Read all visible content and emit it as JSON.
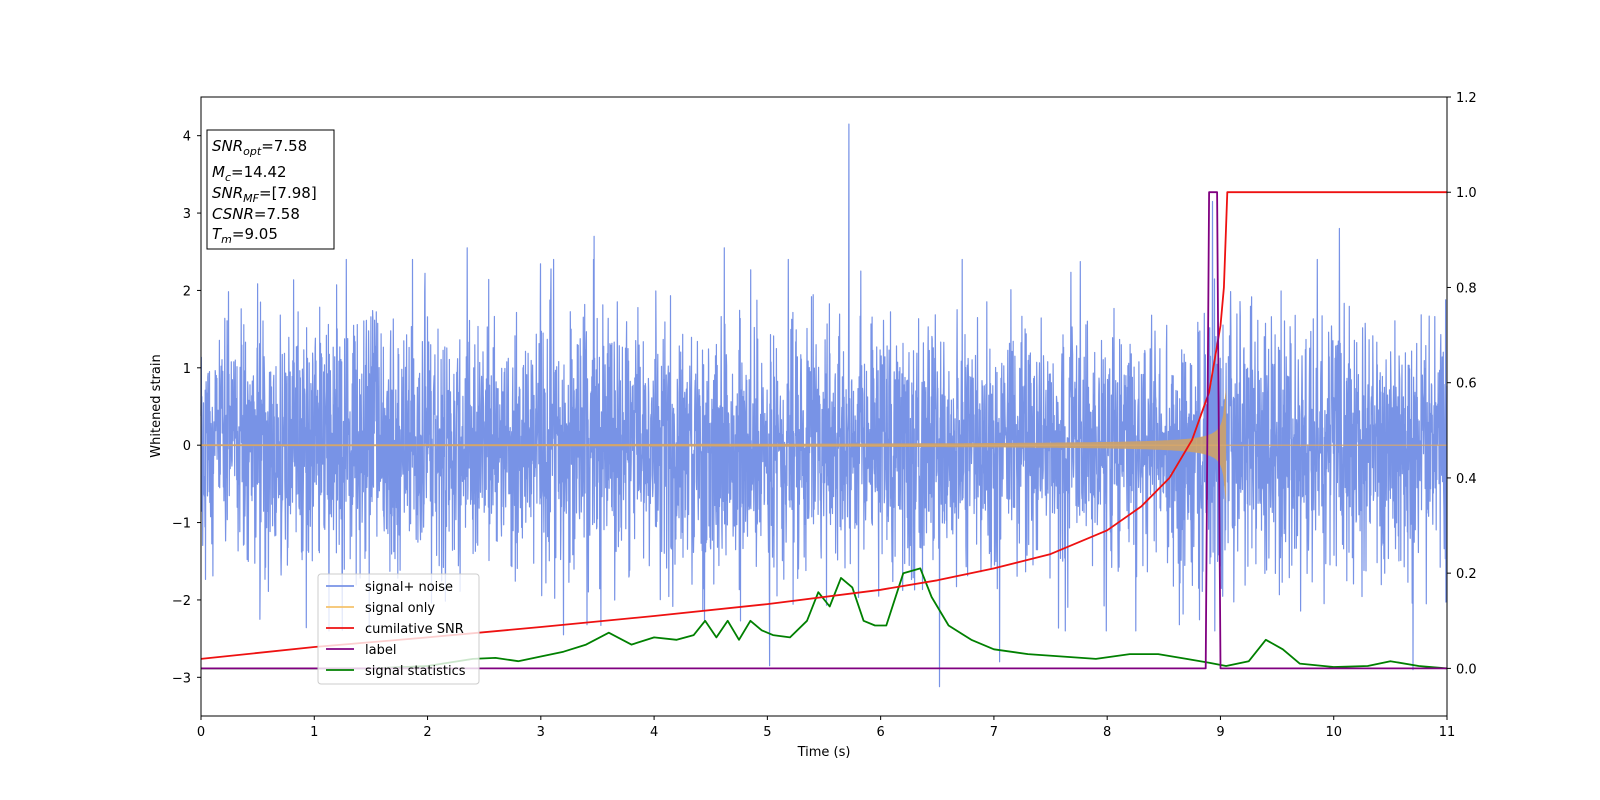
{
  "chart_data": {
    "type": "line",
    "xlabel": "Time (s)",
    "ylabel": "Whitened strain",
    "xlim": [
      0,
      11
    ],
    "ylim": [
      -3.5,
      4.5
    ],
    "y2lim": [
      -0.1,
      1.2
    ],
    "x_ticks": [
      "0",
      "1",
      "2",
      "3",
      "4",
      "5",
      "6",
      "7",
      "8",
      "9",
      "10",
      "11"
    ],
    "y_ticks": [
      "−3",
      "−2",
      "−1",
      "0",
      "1",
      "2",
      "3",
      "4"
    ],
    "y2_ticks": [
      "0.0",
      "0.2",
      "0.4",
      "0.6",
      "0.8",
      "1.0",
      "1.2"
    ],
    "grid": false,
    "legend_position": "lower-left",
    "stats_box": {
      "position": "top-left",
      "lines": [
        {
          "sym": "SNR",
          "sub": "opt",
          "val": "=7.58"
        },
        {
          "sym": "M",
          "sub": "c",
          "val": "=14.42"
        },
        {
          "sym": "SNR",
          "sub": "MF",
          "val": "=[7.98]"
        },
        {
          "sym": "CSNR",
          "sub": "",
          "val": "=7.58"
        },
        {
          "sym": "T",
          "sub": "m",
          "val": "=9.05"
        }
      ]
    },
    "series": [
      {
        "name": "signal+ noise",
        "axis": "left",
        "color": "#7893e6",
        "kind": "noise",
        "sigma": 0.8,
        "spikes": [
          {
            "x": 5.72,
            "y": 4.15
          },
          {
            "x": 6.52,
            "y": -3.12
          },
          {
            "x": 8.93,
            "y": 3.15
          },
          {
            "x": 3.47,
            "y": 2.7
          },
          {
            "x": 2.35,
            "y": 2.55
          },
          {
            "x": 10.05,
            "y": 2.8
          },
          {
            "x": 3.2,
            "y": -2.45
          },
          {
            "x": 5.02,
            "y": -2.85
          },
          {
            "x": 7.05,
            "y": -2.8
          },
          {
            "x": 10.7,
            "y": -2.9
          },
          {
            "x": 0.52,
            "y": -2.25
          },
          {
            "x": 4.62,
            "y": 2.55
          }
        ]
      },
      {
        "name": "signal only",
        "axis": "left",
        "color": "#f5c26b",
        "kind": "chirp",
        "merger_time": 9.05
      },
      {
        "name": "cumilative SNR",
        "axis": "right",
        "color": "#ee1111",
        "kind": "points",
        "points": [
          [
            0,
            0.02
          ],
          [
            1,
            0.045
          ],
          [
            2,
            0.065
          ],
          [
            3,
            0.087
          ],
          [
            4,
            0.11
          ],
          [
            5,
            0.135
          ],
          [
            6,
            0.165
          ],
          [
            6.5,
            0.185
          ],
          [
            7,
            0.21
          ],
          [
            7.5,
            0.24
          ],
          [
            8,
            0.29
          ],
          [
            8.3,
            0.34
          ],
          [
            8.55,
            0.4
          ],
          [
            8.75,
            0.48
          ],
          [
            8.9,
            0.58
          ],
          [
            9.0,
            0.72
          ],
          [
            9.03,
            0.8
          ],
          [
            9.06,
            1.0
          ],
          [
            11,
            1.0
          ]
        ]
      },
      {
        "name": "label",
        "axis": "right",
        "color": "#800080",
        "kind": "points",
        "points": [
          [
            0,
            0.0
          ],
          [
            8.87,
            0.0
          ],
          [
            8.9,
            1.0
          ],
          [
            8.97,
            1.0
          ],
          [
            9.0,
            0.0
          ],
          [
            11,
            0.0
          ]
        ]
      },
      {
        "name": "signal statistics",
        "axis": "right",
        "color": "#008000",
        "kind": "points",
        "points": [
          [
            0,
            0.0
          ],
          [
            0.5,
            0.0
          ],
          [
            1.5,
            0.0
          ],
          [
            2,
            0.005
          ],
          [
            2.4,
            0.02
          ],
          [
            2.6,
            0.022
          ],
          [
            2.8,
            0.015
          ],
          [
            3.0,
            0.025
          ],
          [
            3.2,
            0.035
          ],
          [
            3.4,
            0.05
          ],
          [
            3.6,
            0.075
          ],
          [
            3.8,
            0.05
          ],
          [
            4.0,
            0.065
          ],
          [
            4.2,
            0.06
          ],
          [
            4.35,
            0.07
          ],
          [
            4.45,
            0.1
          ],
          [
            4.55,
            0.065
          ],
          [
            4.65,
            0.1
          ],
          [
            4.75,
            0.06
          ],
          [
            4.85,
            0.1
          ],
          [
            4.95,
            0.08
          ],
          [
            5.05,
            0.07
          ],
          [
            5.2,
            0.065
          ],
          [
            5.35,
            0.1
          ],
          [
            5.45,
            0.16
          ],
          [
            5.55,
            0.13
          ],
          [
            5.65,
            0.19
          ],
          [
            5.75,
            0.17
          ],
          [
            5.85,
            0.1
          ],
          [
            5.95,
            0.09
          ],
          [
            6.05,
            0.09
          ],
          [
            6.2,
            0.2
          ],
          [
            6.35,
            0.21
          ],
          [
            6.45,
            0.15
          ],
          [
            6.6,
            0.09
          ],
          [
            6.8,
            0.06
          ],
          [
            7.0,
            0.04
          ],
          [
            7.3,
            0.03
          ],
          [
            7.6,
            0.025
          ],
          [
            7.9,
            0.02
          ],
          [
            8.2,
            0.03
          ],
          [
            8.45,
            0.03
          ],
          [
            8.7,
            0.02
          ],
          [
            8.9,
            0.012
          ],
          [
            9.05,
            0.005
          ],
          [
            9.25,
            0.015
          ],
          [
            9.4,
            0.06
          ],
          [
            9.55,
            0.04
          ],
          [
            9.7,
            0.01
          ],
          [
            10.0,
            0.003
          ],
          [
            10.3,
            0.005
          ],
          [
            10.5,
            0.015
          ],
          [
            10.75,
            0.005
          ],
          [
            11,
            0.0
          ]
        ]
      }
    ]
  }
}
